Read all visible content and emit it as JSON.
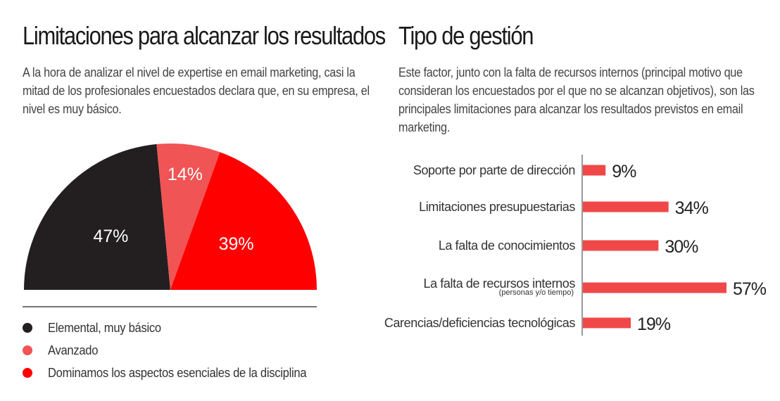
{
  "left": {
    "title": "Limitaciones para alcanzar los resultados",
    "description": "A la hora de analizar el nivel de expertise en email marketing, casi la mitad de los profesionales encuestados declara que, en su empresa, el nivel es muy básico."
  },
  "right": {
    "title": "Tipo de gestión",
    "description": "Este factor, junto con la falta de recursos internos (principal motivo que consideran los encuestados por el que no se alcanzan objetivos), son las principales limitaciones para alcanzar los resultados previstos en email marketing."
  },
  "chart_data": [
    {
      "type": "pie",
      "variant": "semicircle",
      "slices": [
        {
          "label": "Elemental, muy básico",
          "value": 47,
          "display": "47%",
          "color": "#231f20"
        },
        {
          "label": "Avanzado",
          "value": 14,
          "display": "14%",
          "color": "#f05454"
        },
        {
          "label": "Dominamos los aspectos esenciales de la disciplina",
          "value": 39,
          "display": "39%",
          "color": "#ff0000"
        }
      ],
      "legend_position": "bottom-left"
    },
    {
      "type": "bar",
      "orientation": "horizontal",
      "color": "#f04848",
      "categories": [
        "Soporte por parte de dirección",
        "Limitaciones presupuestarias",
        "La falta de conocimientos",
        "La falta de recursos internos",
        "Carencias/deficiencias tecnológicas"
      ],
      "sublabels": [
        "",
        "",
        "",
        "(personas y/o tiempo)",
        ""
      ],
      "values": [
        9,
        34,
        30,
        57,
        19
      ],
      "value_labels": [
        "9%",
        "34%",
        "30%",
        "57%",
        "19%"
      ],
      "xlim": [
        0,
        57
      ]
    }
  ]
}
